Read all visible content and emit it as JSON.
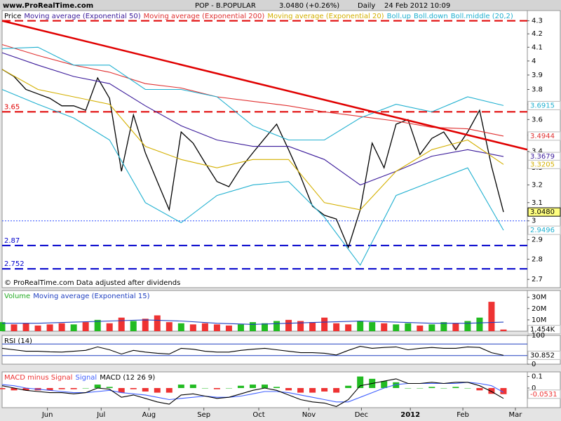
{
  "header": {
    "site": "www.ProRealTime.com",
    "title": "POP - B.POPULAR",
    "quote": "3.0480 (+0.26%)",
    "period": "Daily",
    "timestamp": "24 Feb 2012 10:09"
  },
  "chart_data": [
    {
      "type": "line",
      "log_scale": true,
      "xlim": [
        0,
        44
      ],
      "ylim": [
        2.66,
        4.38
      ],
      "yticks": [
        2.7,
        2.8,
        2.9,
        3,
        3.1,
        3.2,
        3.3,
        3.4,
        3.5,
        3.6,
        3.7,
        3.8,
        3.9,
        4,
        4.1,
        4.2,
        4.3
      ],
      "x": [
        0,
        1,
        2,
        3,
        4,
        5,
        6,
        7,
        8,
        9,
        10,
        11,
        12,
        13,
        14,
        15,
        16,
        17,
        18,
        19,
        20,
        21,
        22,
        23,
        24,
        25,
        26,
        27,
        28,
        29,
        30,
        31,
        32,
        33,
        34,
        35,
        36,
        37,
        38,
        39,
        40,
        41,
        42
      ],
      "series": [
        {
          "name": "Price",
          "color": "#000000",
          "values": [
            3.94,
            3.89,
            3.8,
            3.77,
            3.74,
            3.69,
            3.69,
            3.66,
            3.88,
            3.74,
            3.28,
            3.63,
            3.39,
            3.22,
            3.06,
            3.52,
            3.45,
            3.33,
            3.22,
            3.19,
            3.3,
            3.39,
            3.48,
            3.57,
            3.41,
            3.25,
            3.08,
            3.03,
            3.01,
            2.86,
            3.06,
            3.45,
            3.3,
            3.57,
            3.6,
            3.38,
            3.48,
            3.52,
            3.41,
            3.52,
            3.66,
            3.31,
            3.048
          ],
          "end_label": {
            "value": 3.048,
            "label": "3.0480"
          }
        },
        {
          "name": "Moving average (Exponential 50)",
          "color": "#3a1a9a",
          "x": [
            0,
            3,
            6,
            9,
            12,
            15,
            18,
            21,
            24,
            27,
            30,
            33,
            36,
            39,
            42
          ],
          "values": [
            4.06,
            3.97,
            3.89,
            3.84,
            3.69,
            3.56,
            3.47,
            3.43,
            3.43,
            3.35,
            3.2,
            3.28,
            3.37,
            3.41,
            3.3679
          ],
          "end_label": {
            "value": 3.3679,
            "label": "3.3679"
          }
        },
        {
          "name": "Moving average (Exponential 200)",
          "color": "#e03030",
          "x": [
            0,
            3,
            6,
            9,
            12,
            15,
            18,
            21,
            24,
            27,
            30,
            33,
            36,
            39,
            42
          ],
          "values": [
            4.12,
            4.04,
            3.97,
            3.92,
            3.84,
            3.81,
            3.75,
            3.72,
            3.69,
            3.65,
            3.62,
            3.59,
            3.55,
            3.54,
            3.4944
          ],
          "end_label": {
            "value": 3.4944,
            "label": "3.4944"
          }
        },
        {
          "name": "Moving average (Exponential 20)",
          "color": "#d4b000",
          "x": [
            0,
            3,
            6,
            9,
            12,
            15,
            18,
            21,
            24,
            27,
            30,
            33,
            36,
            39,
            42
          ],
          "values": [
            3.94,
            3.8,
            3.75,
            3.7,
            3.43,
            3.35,
            3.3,
            3.35,
            3.35,
            3.1,
            3.06,
            3.28,
            3.41,
            3.47,
            3.3205
          ],
          "end_label": {
            "value": 3.3205,
            "label": "3.3205"
          }
        },
        {
          "name": "Boll.up",
          "color": "#20b0d0",
          "x": [
            0,
            3,
            6,
            9,
            12,
            15,
            18,
            21,
            24,
            27,
            30,
            33,
            36,
            39,
            42
          ],
          "values": [
            4.09,
            4.1,
            3.97,
            3.97,
            3.8,
            3.8,
            3.75,
            3.56,
            3.47,
            3.47,
            3.61,
            3.7,
            3.65,
            3.75,
            3.6915
          ],
          "end_label": {
            "value": 3.6915,
            "label": "3.6915"
          }
        },
        {
          "name": "Boll.down",
          "color": "#20b0d0",
          "x": [
            0,
            3,
            6,
            9,
            12,
            15,
            18,
            21,
            24,
            27,
            30,
            33,
            36,
            39,
            42
          ],
          "values": [
            3.8,
            3.7,
            3.61,
            3.47,
            3.1,
            2.99,
            3.14,
            3.2,
            3.22,
            3.02,
            2.77,
            3.14,
            3.22,
            3.3,
            2.9496
          ],
          "end_label": {
            "value": 2.9496,
            "label": "2.9496"
          }
        }
      ],
      "legend_note": "Boll.middle (20,2)",
      "levels": [
        {
          "value": 4.3,
          "color": "#e00000",
          "style": "dashed",
          "labeled": false
        },
        {
          "value": 3.65,
          "color": "#e00000",
          "style": "dashed",
          "labeled": true
        },
        {
          "value": 3,
          "color": "#3050ff",
          "style": "dotted",
          "labeled": false
        },
        {
          "value": 2.87,
          "color": "#0000cc",
          "style": "dashed",
          "labeled": true
        },
        {
          "value": 2.752,
          "color": "#0000cc",
          "style": "dashed",
          "labeled": true
        }
      ],
      "trendline": {
        "x": [
          0,
          44
        ],
        "values": [
          4.3,
          3.41
        ],
        "color": "#e00000"
      },
      "footnote": "© ProRealTime.com  Data adjusted after dividends"
    },
    {
      "type": "bar",
      "xlim": [
        0,
        44
      ],
      "ylim": [
        0,
        36
      ],
      "yticks": [
        {
          "value": 10,
          "label": "10M"
        },
        {
          "value": 20,
          "label": "20M"
        },
        {
          "value": 30,
          "label": "30M"
        }
      ],
      "x": [
        0,
        1,
        2,
        3,
        4,
        5,
        6,
        7,
        8,
        9,
        10,
        11,
        12,
        13,
        14,
        15,
        16,
        17,
        18,
        19,
        20,
        21,
        22,
        23,
        24,
        25,
        26,
        27,
        28,
        29,
        30,
        31,
        32,
        33,
        34,
        35,
        36,
        37,
        38,
        39,
        40,
        41,
        42
      ],
      "series": [
        {
          "name": "Volume",
          "color": "#22aa22",
          "up_color": "#22bb22",
          "down_color": "#ee3333",
          "values": [
            8,
            6,
            7,
            5,
            6,
            7,
            6,
            8,
            10,
            7,
            12,
            9,
            11,
            14,
            8,
            7,
            6,
            7,
            6,
            5,
            6,
            8,
            7,
            9,
            10,
            9,
            8,
            12,
            7,
            6,
            9,
            8,
            7,
            6,
            7,
            5,
            6,
            8,
            7,
            9,
            12,
            26,
            1.454
          ],
          "end_label": {
            "value": 1.454,
            "label": "1,454K"
          }
        },
        {
          "name": "Moving average (Exponential 15)",
          "color": "#2040c0",
          "x": [
            0,
            3,
            6,
            9,
            12,
            15,
            18,
            21,
            24,
            27,
            30,
            33,
            36,
            39,
            42
          ],
          "values": [
            7,
            7,
            8,
            9,
            10,
            9,
            7,
            6,
            7,
            8,
            9,
            8,
            7,
            7,
            8
          ]
        }
      ]
    },
    {
      "type": "line",
      "xlim": [
        0,
        44
      ],
      "ylim": [
        0,
        100
      ],
      "yticks": [
        0,
        100
      ],
      "levels": [
        {
          "value": 30,
          "color": "#2040c0",
          "style": "solid",
          "labeled": false
        },
        {
          "value": 70,
          "color": "#2040c0",
          "style": "solid",
          "labeled": false
        }
      ],
      "x": [
        0,
        1,
        2,
        3,
        4,
        5,
        6,
        7,
        8,
        9,
        10,
        11,
        12,
        13,
        14,
        15,
        16,
        17,
        18,
        19,
        20,
        21,
        22,
        23,
        24,
        25,
        26,
        27,
        28,
        29,
        30,
        31,
        32,
        33,
        34,
        35,
        36,
        37,
        38,
        39,
        40,
        41,
        42
      ],
      "series": [
        {
          "name": "RSI (14)",
          "color": "#000000",
          "values": [
            55,
            50,
            45,
            45,
            43,
            42,
            45,
            48,
            60,
            50,
            35,
            48,
            42,
            38,
            35,
            55,
            52,
            45,
            42,
            42,
            48,
            52,
            55,
            50,
            45,
            40,
            40,
            38,
            32,
            48,
            62,
            55,
            58,
            60,
            50,
            55,
            58,
            55,
            55,
            60,
            58,
            40,
            30.852
          ],
          "end_label": {
            "value": 30.852,
            "label": "30.852"
          }
        }
      ]
    },
    {
      "type": "macd",
      "xlim": [
        0,
        44
      ],
      "ylim": [
        -0.17,
        0.14
      ],
      "yticks": [
        0,
        0.1
      ],
      "x": [
        0,
        1,
        2,
        3,
        4,
        5,
        6,
        7,
        8,
        9,
        10,
        11,
        12,
        13,
        14,
        15,
        16,
        17,
        18,
        19,
        20,
        21,
        22,
        23,
        24,
        25,
        26,
        27,
        28,
        29,
        30,
        31,
        32,
        33,
        34,
        35,
        36,
        37,
        38,
        39,
        40,
        41,
        42
      ],
      "xticks": [
        {
          "value": 3.8,
          "label": "Jun"
        },
        {
          "value": 8.3,
          "label": "Jul"
        },
        {
          "value": 12.3,
          "label": "Aug"
        },
        {
          "value": 16.9,
          "label": "Sep"
        },
        {
          "value": 21.5,
          "label": "Oct"
        },
        {
          "value": 25.7,
          "label": "Nov"
        },
        {
          "value": 30.1,
          "label": "Dec"
        },
        {
          "value": 34.2,
          "label": "2012"
        },
        {
          "value": 38.6,
          "label": "Feb"
        },
        {
          "value": 43.0,
          "label": "Mar"
        }
      ],
      "series": [
        {
          "name": "MACD minus Signal",
          "kind": "histogram",
          "color": "#ee3333",
          "up_color": "#22bb22",
          "down_color": "#ee3333",
          "values": [
            -0.01,
            -0.02,
            -0.02,
            -0.02,
            -0.02,
            -0.01,
            -0.01,
            0,
            0.03,
            0.01,
            -0.04,
            -0.01,
            -0.03,
            -0.04,
            -0.04,
            0.03,
            0.03,
            0,
            -0.01,
            0,
            0.02,
            0.03,
            0.03,
            0.01,
            -0.02,
            -0.04,
            -0.04,
            -0.03,
            -0.04,
            0.02,
            0.1,
            0.08,
            0.06,
            0.05,
            0,
            0,
            0.01,
            0,
            0.01,
            0,
            -0.02,
            -0.05,
            -0.0531
          ],
          "end_label": {
            "value": -0.0531,
            "label": "-0.0531"
          }
        },
        {
          "name": "Signal",
          "kind": "line",
          "color": "#4060ff",
          "values": [
            0.03,
            0.02,
            0,
            -0.01,
            -0.02,
            -0.03,
            -0.04,
            -0.04,
            -0.03,
            -0.02,
            -0.04,
            -0.05,
            -0.06,
            -0.08,
            -0.1,
            -0.09,
            -0.08,
            -0.07,
            -0.08,
            -0.08,
            -0.07,
            -0.05,
            -0.03,
            -0.03,
            -0.04,
            -0.06,
            -0.08,
            -0.1,
            -0.12,
            -0.12,
            -0.08,
            -0.04,
            0,
            0.03,
            0.04,
            0.04,
            0.04,
            0.04,
            0.04,
            0.05,
            0.04,
            0.02,
            -0.0369
          ]
        },
        {
          "name": "MACD (12 26 9)",
          "kind": "line",
          "color": "#000000",
          "values": [
            0.02,
            0,
            -0.02,
            -0.03,
            -0.04,
            -0.04,
            -0.05,
            -0.04,
            0,
            -0.01,
            -0.08,
            -0.06,
            -0.09,
            -0.12,
            -0.14,
            -0.06,
            -0.05,
            -0.07,
            -0.09,
            -0.08,
            -0.05,
            -0.02,
            0,
            -0.02,
            -0.06,
            -0.1,
            -0.12,
            -0.13,
            -0.16,
            -0.1,
            0.02,
            0.04,
            0.06,
            0.08,
            0.04,
            0.04,
            0.05,
            0.04,
            0.05,
            0.05,
            0.02,
            -0.03,
            -0.09
          ]
        }
      ]
    }
  ]
}
